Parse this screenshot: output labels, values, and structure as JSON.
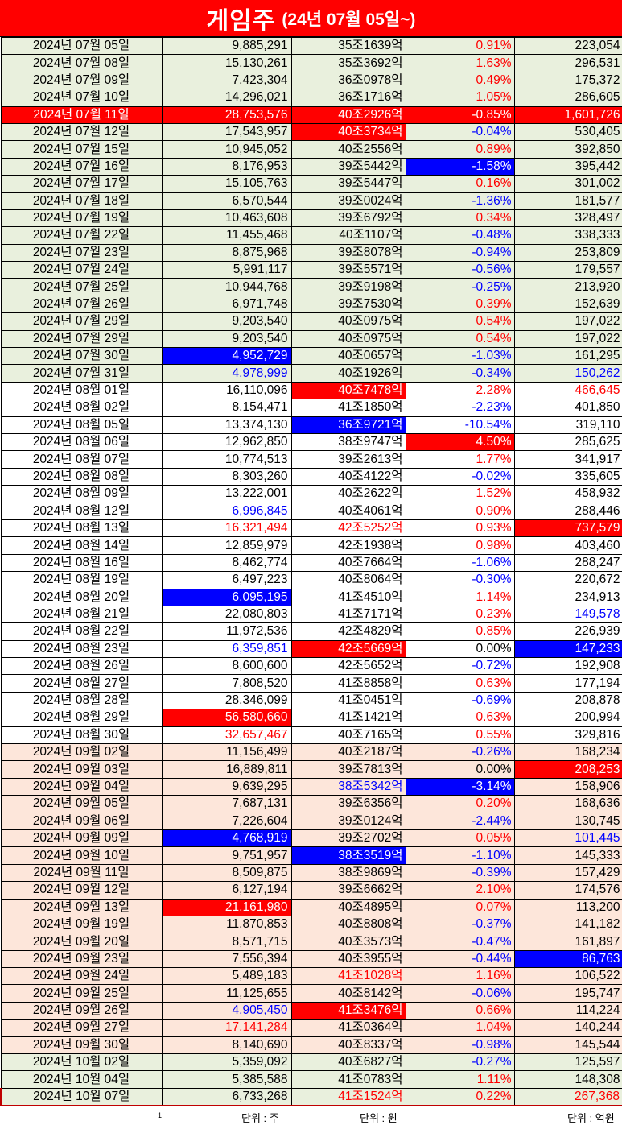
{
  "title": {
    "main": "게임주",
    "sub": "(24년 07월 05일~)"
  },
  "colors": {
    "red": "#ff0000",
    "blue": "#0000ff",
    "group1": "#e9f0dd",
    "group2": "#ffffff",
    "group3": "#fde6da"
  },
  "rows": [
    {
      "g": 1,
      "c": [
        "2024년 07월 05일",
        "9,885,291",
        "35조1639억",
        "0.91%",
        "223,054"
      ],
      "h": {
        "p": "r"
      }
    },
    {
      "g": 1,
      "c": [
        "2024년 07월 08일",
        "15,130,261",
        "35조3692억",
        "1.63%",
        "296,531"
      ],
      "h": {
        "p": "r"
      }
    },
    {
      "g": 1,
      "c": [
        "2024년 07월 09일",
        "7,423,304",
        "36조0978억",
        "0.49%",
        "175,372"
      ],
      "h": {
        "p": "r"
      }
    },
    {
      "g": 1,
      "c": [
        "2024년 07월 10일",
        "14,296,021",
        "36조1716억",
        "1.05%",
        "286,605"
      ],
      "h": {
        "p": "r"
      }
    },
    {
      "g": 1,
      "c": [
        "2024년 07월 11일",
        "28,753,576",
        "40조2926억",
        "-0.85%",
        "1,601,726"
      ],
      "h": {
        "d": "R",
        "v": "R",
        "m": "R",
        "p": "R",
        "a": "R"
      }
    },
    {
      "g": 1,
      "c": [
        "2024년 07월 12일",
        "17,543,957",
        "40조3734억",
        "-0.04%",
        "530,405"
      ],
      "h": {
        "m": "R",
        "p": "b"
      }
    },
    {
      "g": 1,
      "c": [
        "2024년 07월 15일",
        "10,945,052",
        "40조2556억",
        "0.89%",
        "392,850"
      ],
      "h": {
        "p": "r"
      }
    },
    {
      "g": 1,
      "c": [
        "2024년 07월 16일",
        "8,176,953",
        "39조5442억",
        "-1.58%",
        "395,442"
      ],
      "h": {
        "p": "B"
      }
    },
    {
      "g": 1,
      "c": [
        "2024년 07월 17일",
        "15,105,763",
        "39조5447억",
        "0.16%",
        "301,002"
      ],
      "h": {
        "p": "r"
      }
    },
    {
      "g": 1,
      "c": [
        "2024년 07월 18일",
        "6,570,544",
        "39조0024억",
        "-1.36%",
        "181,577"
      ],
      "h": {
        "p": "b"
      }
    },
    {
      "g": 1,
      "c": [
        "2024년 07월 19일",
        "10,463,608",
        "39조6792억",
        "0.34%",
        "328,497"
      ],
      "h": {
        "p": "r"
      }
    },
    {
      "g": 1,
      "c": [
        "2024년 07월 22일",
        "11,455,468",
        "40조1107억",
        "-0.48%",
        "338,333"
      ],
      "h": {
        "p": "b"
      }
    },
    {
      "g": 1,
      "c": [
        "2024년 07월 23일",
        "8,875,968",
        "39조8078억",
        "-0.94%",
        "253,809"
      ],
      "h": {
        "p": "b"
      }
    },
    {
      "g": 1,
      "c": [
        "2024년 07월 24일",
        "5,991,117",
        "39조5571억",
        "-0.56%",
        "179,557"
      ],
      "h": {
        "p": "b"
      }
    },
    {
      "g": 1,
      "c": [
        "2024년 07월 25일",
        "10,944,768",
        "39조9198억",
        "-0.25%",
        "213,920"
      ],
      "h": {
        "p": "b"
      }
    },
    {
      "g": 1,
      "c": [
        "2024년 07월 26일",
        "6,971,748",
        "39조7530억",
        "0.39%",
        "152,639"
      ],
      "h": {
        "p": "r"
      }
    },
    {
      "g": 1,
      "c": [
        "2024년 07월 29일",
        "9,203,540",
        "40조0975억",
        "0.54%",
        "197,022"
      ],
      "h": {
        "p": "r"
      }
    },
    {
      "g": 1,
      "c": [
        "2024년 07월 29일",
        "9,203,540",
        "40조0975억",
        "0.54%",
        "197,022"
      ],
      "h": {
        "p": "r"
      }
    },
    {
      "g": 1,
      "c": [
        "2024년 07월 30일",
        "4,952,729",
        "40조0657억",
        "-1.03%",
        "161,295"
      ],
      "h": {
        "v": "B",
        "p": "b"
      }
    },
    {
      "g": 1,
      "c": [
        "2024년 07월 31일",
        "4,978,999",
        "40조1926억",
        "-0.34%",
        "150,262"
      ],
      "h": {
        "v": "b",
        "p": "b",
        "a": "b"
      }
    },
    {
      "g": 2,
      "c": [
        "2024년 08월 01일",
        "16,110,096",
        "40조7478억",
        "2.28%",
        "466,645"
      ],
      "h": {
        "m": "R",
        "p": "r",
        "a": "r"
      }
    },
    {
      "g": 2,
      "c": [
        "2024년 08월 02일",
        "8,154,471",
        "41조1850억",
        "-2.23%",
        "401,850"
      ],
      "h": {
        "p": "b"
      }
    },
    {
      "g": 2,
      "c": [
        "2024년 08월 05일",
        "13,374,130",
        "36조9721억",
        "-10.54%",
        "319,110"
      ],
      "h": {
        "m": "B",
        "p": "b"
      }
    },
    {
      "g": 2,
      "c": [
        "2024년 08월 06일",
        "12,962,850",
        "38조9747억",
        "4.50%",
        "285,625"
      ],
      "h": {
        "p": "R"
      }
    },
    {
      "g": 2,
      "c": [
        "2024년 08월 07일",
        "10,774,513",
        "39조2613억",
        "1.77%",
        "341,917"
      ],
      "h": {
        "p": "r"
      }
    },
    {
      "g": 2,
      "c": [
        "2024년 08월 08일",
        "8,303,260",
        "40조4122억",
        "-0.02%",
        "335,605"
      ],
      "h": {
        "p": "b"
      }
    },
    {
      "g": 2,
      "c": [
        "2024년 08월 09일",
        "13,222,001",
        "40조2622억",
        "1.52%",
        "458,932"
      ],
      "h": {
        "p": "r"
      }
    },
    {
      "g": 2,
      "c": [
        "2024년 08월 12일",
        "6,996,845",
        "40조4061억",
        "0.90%",
        "288,446"
      ],
      "h": {
        "v": "b",
        "p": "r"
      }
    },
    {
      "g": 2,
      "c": [
        "2024년 08월 13일",
        "16,321,494",
        "42조5252억",
        "0.93%",
        "737,579"
      ],
      "h": {
        "v": "r",
        "m": "r",
        "p": "r",
        "a": "R"
      }
    },
    {
      "g": 2,
      "c": [
        "2024년 08월 14일",
        "12,859,979",
        "42조1938억",
        "0.98%",
        "403,460"
      ],
      "h": {
        "p": "r"
      }
    },
    {
      "g": 2,
      "c": [
        "2024년 08월 16일",
        "8,462,774",
        "40조7664억",
        "-1.06%",
        "288,247"
      ],
      "h": {
        "p": "b"
      }
    },
    {
      "g": 2,
      "c": [
        "2024년 08월 19일",
        "6,497,223",
        "40조8064억",
        "-0.30%",
        "220,672"
      ],
      "h": {
        "p": "b"
      }
    },
    {
      "g": 2,
      "c": [
        "2024년 08월 20일",
        "6,095,195",
        "41조4510억",
        "1.14%",
        "234,913"
      ],
      "h": {
        "v": "B",
        "p": "r"
      }
    },
    {
      "g": 2,
      "c": [
        "2024년 08월 21일",
        "22,080,803",
        "41조7171억",
        "0.23%",
        "149,578"
      ],
      "h": {
        "p": "r",
        "a": "b"
      }
    },
    {
      "g": 2,
      "c": [
        "2024년 08월 22일",
        "11,972,536",
        "42조4829억",
        "0.85%",
        "226,939"
      ],
      "h": {
        "p": "r"
      }
    },
    {
      "g": 2,
      "c": [
        "2024년 08월 23일",
        "6,359,851",
        "42조5669억",
        "0.00%",
        "147,233"
      ],
      "h": {
        "v": "b",
        "m": "R",
        "a": "B"
      }
    },
    {
      "g": 2,
      "c": [
        "2024년 08월 26일",
        "8,600,600",
        "42조5652억",
        "-0.72%",
        "192,908"
      ],
      "h": {
        "p": "b"
      }
    },
    {
      "g": 2,
      "c": [
        "2024년 08월 27일",
        "7,808,520",
        "41조8858억",
        "0.63%",
        "177,194"
      ],
      "h": {
        "p": "r"
      }
    },
    {
      "g": 2,
      "c": [
        "2024년 08월 28일",
        "28,346,099",
        "41조0451억",
        "-0.69%",
        "208,878"
      ],
      "h": {
        "p": "b"
      }
    },
    {
      "g": 2,
      "c": [
        "2024년 08월 29일",
        "56,580,660",
        "41조1421억",
        "0.63%",
        "200,994"
      ],
      "h": {
        "v": "R",
        "p": "r"
      }
    },
    {
      "g": 2,
      "c": [
        "2024년 08월 30일",
        "32,657,467",
        "40조7165억",
        "0.55%",
        "329,816"
      ],
      "h": {
        "v": "r",
        "p": "r"
      }
    },
    {
      "g": 3,
      "c": [
        "2024년 09월 02일",
        "11,156,499",
        "40조2187억",
        "-0.26%",
        "168,234"
      ],
      "h": {
        "p": "b"
      }
    },
    {
      "g": 3,
      "c": [
        "2024년 09월 03일",
        "16,889,811",
        "39조7813억",
        "0.00%",
        "208,253"
      ],
      "h": {
        "a": "R"
      }
    },
    {
      "g": 3,
      "c": [
        "2024년 09월 04일",
        "9,639,295",
        "38조5342억",
        "-3.14%",
        "158,906"
      ],
      "h": {
        "m": "b",
        "p": "B"
      }
    },
    {
      "g": 3,
      "c": [
        "2024년 09월 05일",
        "7,687,131",
        "39조6356억",
        "0.20%",
        "168,636"
      ],
      "h": {
        "p": "r"
      }
    },
    {
      "g": 3,
      "c": [
        "2024년 09월 06일",
        "7,226,604",
        "39조0124억",
        "-2.44%",
        "130,745"
      ],
      "h": {
        "p": "b"
      }
    },
    {
      "g": 3,
      "c": [
        "2024년 09월 09일",
        "4,768,919",
        "39조2702억",
        "0.05%",
        "101,445"
      ],
      "h": {
        "v": "B",
        "p": "r",
        "a": "b"
      }
    },
    {
      "g": 3,
      "c": [
        "2024년 09월 10일",
        "9,751,957",
        "38조3519억",
        "-1.10%",
        "145,333"
      ],
      "h": {
        "m": "B",
        "p": "b"
      }
    },
    {
      "g": 3,
      "c": [
        "2024년 09월 11일",
        "8,509,875",
        "38조9869억",
        "-0.39%",
        "157,429"
      ],
      "h": {
        "p": "b"
      }
    },
    {
      "g": 3,
      "c": [
        "2024년 09월 12일",
        "6,127,194",
        "39조6662억",
        "2.10%",
        "174,576"
      ],
      "h": {
        "p": "r"
      }
    },
    {
      "g": 3,
      "c": [
        "2024년 09월 13일",
        "21,161,980",
        "40조4895억",
        "0.07%",
        "113,200"
      ],
      "h": {
        "v": "R",
        "p": "r"
      }
    },
    {
      "g": 3,
      "c": [
        "2024년 09월 19일",
        "11,870,853",
        "40조8808억",
        "-0.37%",
        "141,182"
      ],
      "h": {
        "p": "b"
      }
    },
    {
      "g": 3,
      "c": [
        "2024년 09월 20일",
        "8,571,715",
        "40조3573억",
        "-0.47%",
        "161,897"
      ],
      "h": {
        "p": "b"
      }
    },
    {
      "g": 3,
      "c": [
        "2024년 09월 23일",
        "7,556,394",
        "40조3955억",
        "-0.44%",
        "86,763"
      ],
      "h": {
        "p": "b",
        "a": "B"
      }
    },
    {
      "g": 3,
      "c": [
        "2024년 09월 24일",
        "5,489,183",
        "41조1028억",
        "1.16%",
        "106,522"
      ],
      "h": {
        "m": "r",
        "p": "r"
      }
    },
    {
      "g": 3,
      "c": [
        "2024년 09월 25일",
        "11,125,655",
        "40조8142억",
        "-0.06%",
        "195,747"
      ],
      "h": {
        "p": "b"
      }
    },
    {
      "g": 3,
      "c": [
        "2024년 09월 26일",
        "4,905,450",
        "41조3476억",
        "0.66%",
        "114,224"
      ],
      "h": {
        "v": "b",
        "m": "R",
        "p": "r"
      }
    },
    {
      "g": 3,
      "c": [
        "2024년 09월 27일",
        "17,141,284",
        "41조0364억",
        "1.04%",
        "140,244"
      ],
      "h": {
        "v": "r",
        "p": "r"
      }
    },
    {
      "g": 3,
      "c": [
        "2024년 09월 30일",
        "8,140,690",
        "40조8337억",
        "-0.98%",
        "145,544"
      ],
      "h": {
        "p": "b"
      }
    },
    {
      "g": 1,
      "c": [
        "2024년 10월 02일",
        "5,359,092",
        "40조6827억",
        "-0.27%",
        "125,597"
      ],
      "h": {
        "p": "b"
      }
    },
    {
      "g": 1,
      "c": [
        "2024년 10월 04일",
        "5,385,588",
        "41조0783억",
        "1.11%",
        "148,308"
      ],
      "h": {
        "p": "r"
      }
    },
    {
      "g": 1,
      "c": [
        "2024년 10월 07일",
        "6,733,268",
        "41조1524억",
        "0.22%",
        "267,368"
      ],
      "h": {
        "m": "r",
        "p": "r",
        "a": "r"
      }
    }
  ],
  "footer": {
    "mark": "1",
    "unit_volume": "단위 : 주",
    "unit_cap": "단위 : 원",
    "unit_amount": "단위 : 억원"
  }
}
